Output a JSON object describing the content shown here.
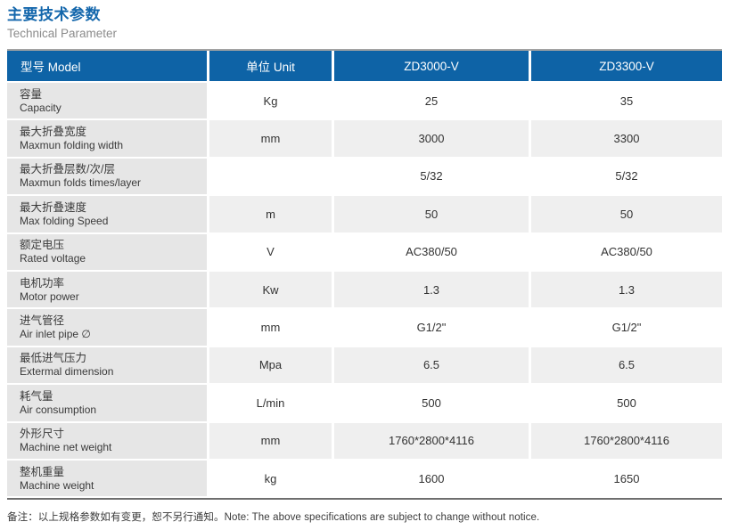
{
  "page": {
    "title_cn": "主要技术参数",
    "title_en": "Technical Parameter",
    "note": "备注：以上规格参数如有变更，恕不另行通知。Note: The above specifications are subject to change without notice."
  },
  "table": {
    "headers": {
      "model": "型号 Model",
      "unit": "单位 Unit",
      "model1": "ZD3000-V",
      "model2": "ZD3300-V"
    },
    "rows": [
      {
        "cn": "容量",
        "en": "Capacity",
        "unit": "Kg",
        "v1": "25",
        "v2": "35"
      },
      {
        "cn": "最大折叠宽度",
        "en": "Maxmun folding width",
        "unit": "mm",
        "v1": "3000",
        "v2": "3300"
      },
      {
        "cn": "最大折叠层数/次/层",
        "en": "Maxmun folds times/layer",
        "unit": "",
        "v1": "5/32",
        "v2": "5/32"
      },
      {
        "cn": "最大折叠速度",
        "en": "Max folding Speed",
        "unit": "m",
        "v1": "50",
        "v2": "50"
      },
      {
        "cn": "额定电压",
        "en": "Rated voltage",
        "unit": "V",
        "v1": "AC380/50",
        "v2": "AC380/50"
      },
      {
        "cn": "电机功率",
        "en": "Motor power",
        "unit": "Kw",
        "v1": "1.3",
        "v2": "1.3"
      },
      {
        "cn": "进气管径",
        "en": "Air inlet pipe ∅",
        "unit": "mm",
        "v1": "G1/2\"",
        "v2": "G1/2\""
      },
      {
        "cn": "最低进气压力",
        "en": "Extermal dimension",
        "unit": "Mpa",
        "v1": "6.5",
        "v2": "6.5"
      },
      {
        "cn": "耗气量",
        "en": "Air consumption",
        "unit": "L/min",
        "v1": "500",
        "v2": "500"
      },
      {
        "cn": "外形尺寸",
        "en": "Machine net weight",
        "unit": "mm",
        "v1": "1760*2800*4116",
        "v2": "1760*2800*4116"
      },
      {
        "cn": "整机重量",
        "en": "Machine weight",
        "unit": "kg",
        "v1": "1600",
        "v2": "1650"
      }
    ]
  },
  "colors": {
    "header_blue": "#0e63a6",
    "title_blue": "#1467ac",
    "label_column_gray": "#e6e6e6",
    "alt_row_gray": "#efefef",
    "text_dark": "#3a3a3a"
  }
}
